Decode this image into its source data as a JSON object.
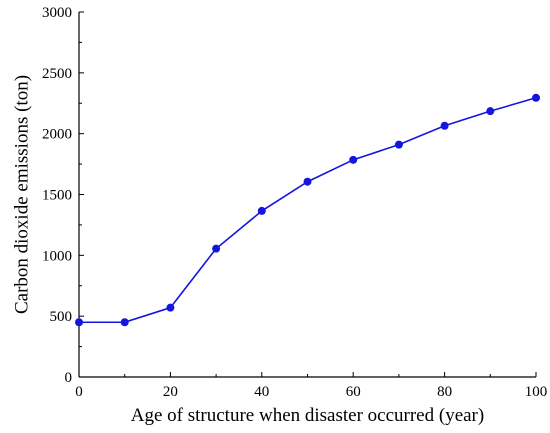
{
  "chart_data": {
    "type": "line",
    "xlabel": "Age of structure when disaster occurred (year)",
    "ylabel": "Carbon dioxide emissions (ton)",
    "xlim": [
      0,
      100
    ],
    "ylim": [
      0,
      3000
    ],
    "xticks": [
      0,
      20,
      40,
      60,
      80,
      100
    ],
    "yticks": [
      0,
      500,
      1000,
      1500,
      2000,
      2500,
      3000
    ],
    "grid": false,
    "series": [
      {
        "color": "#1515e0",
        "x": [
          0,
          10,
          20,
          30,
          40,
          50,
          60,
          70,
          80,
          90,
          100
        ],
        "y": [
          450,
          450,
          570,
          1055,
          1365,
          1605,
          1785,
          1910,
          2065,
          2185,
          2295
        ]
      }
    ]
  }
}
